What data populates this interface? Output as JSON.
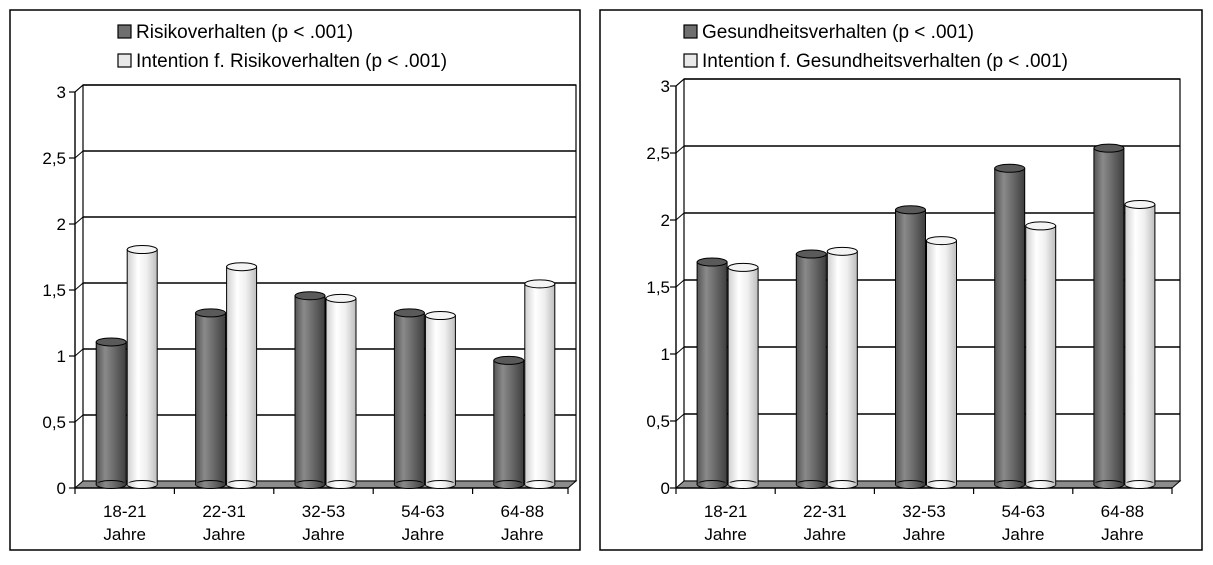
{
  "chart_data": [
    {
      "type": "bar",
      "categories": [
        [
          "18-21",
          "Jahre"
        ],
        [
          "22-31",
          "Jahre"
        ],
        [
          "32-53",
          "Jahre"
        ],
        [
          "54-63",
          "Jahre"
        ],
        [
          "64-88",
          "Jahre"
        ]
      ],
      "series": [
        {
          "name": "Risikoverhalten (p < .001)",
          "values": [
            1.08,
            1.3,
            1.43,
            1.3,
            0.94
          ],
          "color": "#6f6f6f"
        },
        {
          "name": "Intention f. Risikoverhalten (p < .001)",
          "values": [
            1.78,
            1.65,
            1.41,
            1.28,
            1.52
          ],
          "color": "#e9e9e9"
        }
      ],
      "yticks": [
        "0",
        "0,5",
        "1",
        "1,5",
        "2",
        "2,5",
        "3"
      ],
      "ylim": [
        0,
        3
      ],
      "grid": true,
      "legend": "top-left"
    },
    {
      "type": "bar",
      "categories": [
        [
          "18-21",
          "Jahre"
        ],
        [
          "22-31",
          "Jahre"
        ],
        [
          "32-53",
          "Jahre"
        ],
        [
          "54-63",
          "Jahre"
        ],
        [
          "64-88",
          "Jahre"
        ]
      ],
      "series": [
        {
          "name": "Gesundheitsverhalten (p < .001)",
          "values": [
            1.66,
            1.72,
            2.05,
            2.36,
            2.51
          ],
          "color": "#6f6f6f"
        },
        {
          "name": "Intention f. Gesundheitsverhalten (p < .001)",
          "values": [
            1.62,
            1.74,
            1.82,
            1.93,
            2.09
          ],
          "color": "#e9e9e9"
        }
      ],
      "yticks": [
        "0",
        "0,5",
        "1",
        "1,5",
        "2",
        "2,5",
        "3"
      ],
      "ylim": [
        0,
        3
      ],
      "grid": true,
      "legend": "top-left"
    }
  ]
}
